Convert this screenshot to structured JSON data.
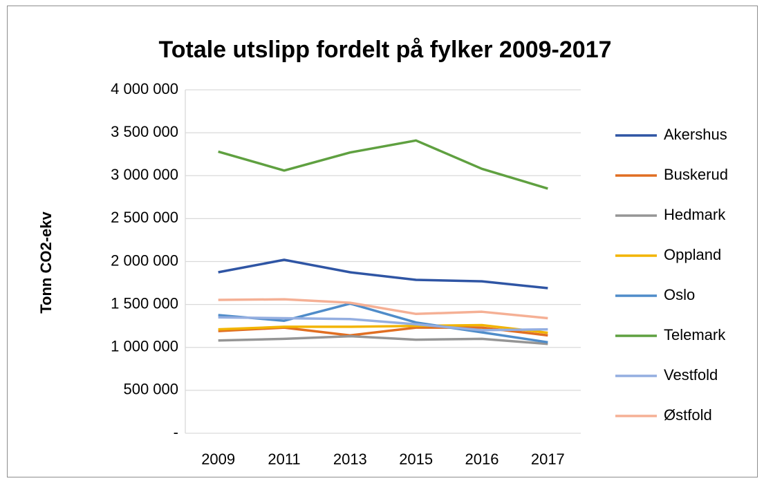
{
  "chart_data": {
    "type": "line",
    "title": "Totale utslipp fordelt på fylker 2009-2017",
    "y_label": "Tonn CO2-ekv",
    "categories": [
      "2009",
      "2011",
      "2013",
      "2015",
      "2016",
      "2017"
    ],
    "series": [
      {
        "name": "Akershus",
        "color": "#2f55a4",
        "values": [
          1875000,
          2020000,
          1875000,
          1787000,
          1770000,
          1690000
        ]
      },
      {
        "name": "Buskerud",
        "color": "#e06e22",
        "values": [
          1190000,
          1230000,
          1140000,
          1230000,
          1230000,
          1140000
        ]
      },
      {
        "name": "Hedmark",
        "color": "#959595",
        "values": [
          1080000,
          1100000,
          1130000,
          1090000,
          1100000,
          1040000
        ]
      },
      {
        "name": "Oppland",
        "color": "#f2b400",
        "values": [
          1210000,
          1240000,
          1240000,
          1250000,
          1260000,
          1170000
        ]
      },
      {
        "name": "Oslo",
        "color": "#4f8cc9",
        "values": [
          1376000,
          1310000,
          1510000,
          1290000,
          1175000,
          1060000
        ]
      },
      {
        "name": "Telemark",
        "color": "#5fa040",
        "values": [
          3280000,
          3060000,
          3270000,
          3410000,
          3080000,
          2850000
        ]
      },
      {
        "name": "Vestfold",
        "color": "#94aee0",
        "values": [
          1350000,
          1340000,
          1330000,
          1270000,
          1200000,
          1210000
        ]
      },
      {
        "name": "Østfold",
        "color": "#f5b095",
        "values": [
          1553000,
          1560000,
          1520000,
          1390000,
          1415000,
          1340000
        ]
      }
    ],
    "ylim": [
      0,
      4000000
    ],
    "yticks": [
      {
        "value": 0,
        "label": "-"
      },
      {
        "value": 500000,
        "label": "500 000"
      },
      {
        "value": 1000000,
        "label": "1 000 000"
      },
      {
        "value": 1500000,
        "label": "1 500 000"
      },
      {
        "value": 2000000,
        "label": "2 000 000"
      },
      {
        "value": 2500000,
        "label": "2 500 000"
      },
      {
        "value": 3000000,
        "label": "3 000 000"
      },
      {
        "value": 3500000,
        "label": "3 500 000"
      },
      {
        "value": 4000000,
        "label": "4 000 000"
      }
    ],
    "grid": true,
    "legend": "right"
  }
}
